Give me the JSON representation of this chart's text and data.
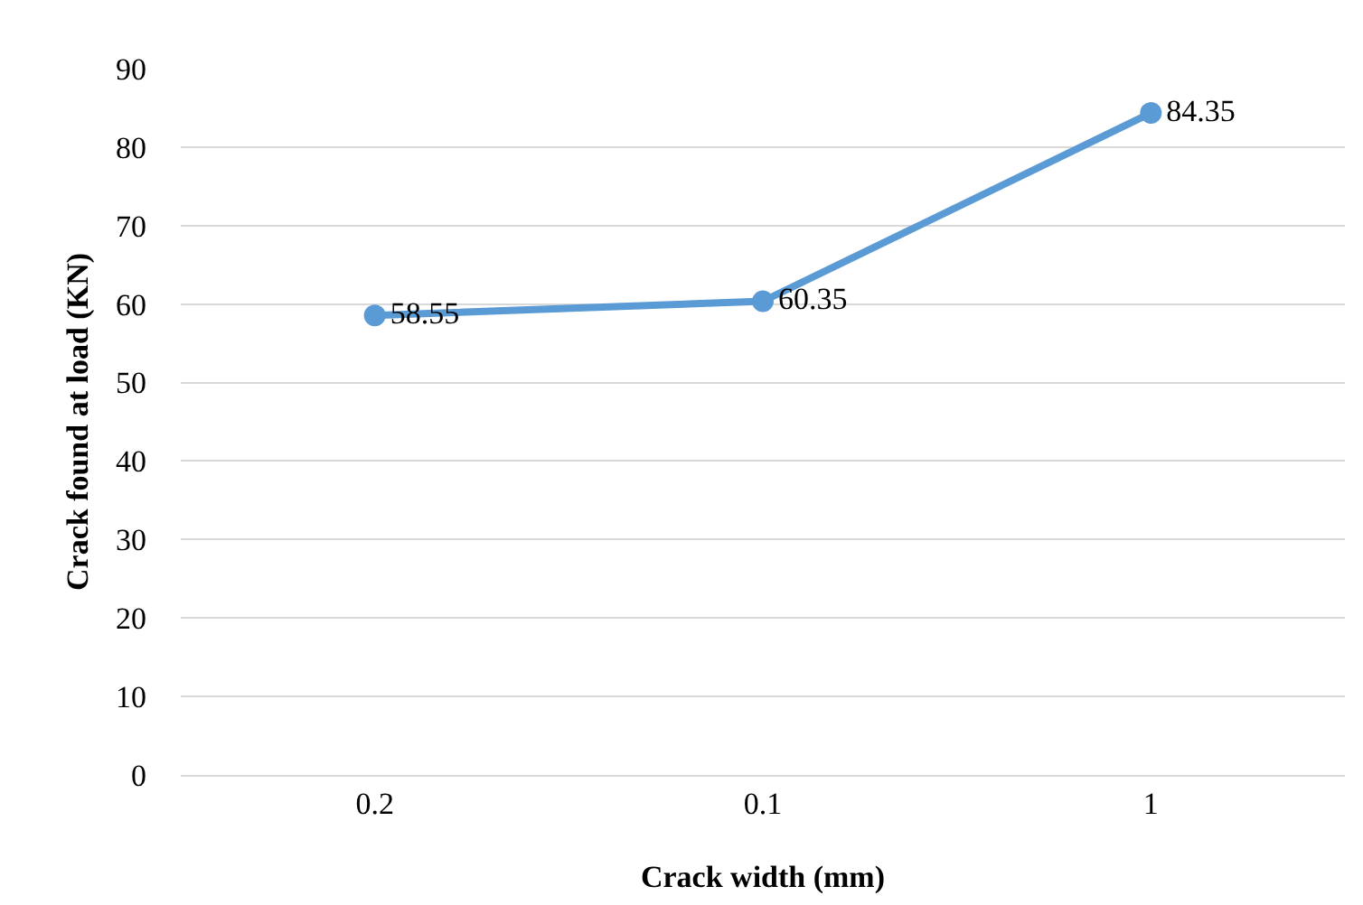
{
  "chart_data": {
    "type": "line",
    "xlabel": "Crack width (mm)",
    "ylabel": "Crack found at load (KN)",
    "categories": [
      "0.2",
      "0.1",
      "1"
    ],
    "series": [
      {
        "color": "#5b9bd5",
        "values": [
          58.55,
          60.35,
          84.35
        ]
      }
    ],
    "ylim": [
      0,
      90
    ],
    "yticks": [
      0,
      10,
      20,
      30,
      40,
      50,
      60,
      70,
      80,
      90
    ],
    "grid": "y",
    "legend": false,
    "marker": "circle",
    "line_style": "solid",
    "data_labels": true
  }
}
